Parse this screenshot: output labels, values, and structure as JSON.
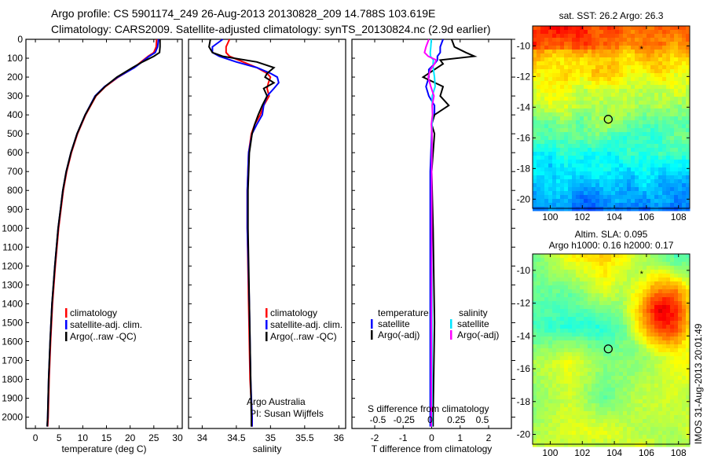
{
  "title": {
    "line1": "Argo profile: CS 5901174_249 26-Aug-2013 20130828_209 14.788S 103.619E",
    "line2": "Climatology: CARS2009. Satellite-adjusted climatology: synTS_20130824.nc (2.9d earlier)"
  },
  "colors": {
    "climatology": "#ff0000",
    "satellite": "#0000ff",
    "argo": "#000000",
    "sal_satellite": "#00e5ff",
    "sal_argo": "#ff00ff"
  },
  "chart_data": [
    {
      "type": "line",
      "id": "temperature",
      "xlabel": "temperature (deg C)",
      "ylabel": "",
      "xlim": [
        -2,
        31
      ],
      "ylim": [
        2060,
        0
      ],
      "xticks": [
        0,
        5,
        10,
        15,
        20,
        25,
        30
      ],
      "yticks": [
        0,
        100,
        200,
        300,
        400,
        500,
        600,
        700,
        800,
        900,
        1000,
        1100,
        1200,
        1300,
        1400,
        1500,
        1600,
        1700,
        1800,
        1900,
        2000
      ],
      "depth": [
        0,
        40,
        70,
        90,
        120,
        150,
        200,
        250,
        300,
        400,
        500,
        600,
        700,
        800,
        1000,
        1200,
        1400,
        1600,
        1800,
        2000,
        2050
      ],
      "series": [
        {
          "name": "climatology",
          "color": "#ff0000",
          "values": [
            25.6,
            25.5,
            25.0,
            23.8,
            22.3,
            20.8,
            17.5,
            14.8,
            12.8,
            10.6,
            8.9,
            7.6,
            6.6,
            5.9,
            4.9,
            4.2,
            3.6,
            3.2,
            2.9,
            2.7,
            2.6
          ]
        },
        {
          "name": "satellite-adj. clim.",
          "color": "#0000ff",
          "values": [
            26.0,
            25.8,
            25.3,
            24.0,
            22.5,
            20.9,
            17.4,
            14.6,
            12.6,
            10.5,
            8.8,
            7.5,
            6.5,
            5.8,
            4.8,
            4.1,
            3.5,
            3.1,
            2.8,
            2.6,
            2.5
          ]
        },
        {
          "name": "Argo(..raw -QC)",
          "color": "#000000",
          "values": [
            26.3,
            26.3,
            26.2,
            25.0,
            22.6,
            20.5,
            17.2,
            14.7,
            12.7,
            10.5,
            8.8,
            7.5,
            6.5,
            5.8,
            4.8,
            4.1,
            3.5,
            3.1,
            2.8,
            2.6,
            2.5
          ]
        }
      ],
      "legend": [
        "climatology",
        "satellite-adj. clim.",
        "Argo(..raw -QC)"
      ]
    },
    {
      "type": "line",
      "id": "salinity",
      "xlabel": "salinity",
      "ylabel": "",
      "xlim": [
        33.8,
        36.1
      ],
      "ylim": [
        2060,
        0
      ],
      "xticks": [
        34,
        34.5,
        35,
        35.5,
        36
      ],
      "depth": [
        0,
        40,
        70,
        90,
        120,
        150,
        180,
        200,
        230,
        260,
        300,
        350,
        400,
        450,
        500,
        600,
        800,
        1000,
        1400,
        1800,
        2000,
        2050
      ],
      "series": [
        {
          "name": "climatology",
          "color": "#ff0000",
          "values": [
            34.4,
            34.35,
            34.35,
            34.4,
            34.6,
            34.8,
            34.95,
            35.0,
            34.97,
            34.95,
            34.98,
            34.9,
            34.85,
            34.77,
            34.72,
            34.68,
            34.66,
            34.66,
            34.68,
            34.7,
            34.73,
            34.73
          ]
        },
        {
          "name": "satellite-adj. clim.",
          "color": "#0000ff",
          "values": [
            34.3,
            34.15,
            34.15,
            34.25,
            34.5,
            34.8,
            35.0,
            35.1,
            35.12,
            35.05,
            34.95,
            34.9,
            34.88,
            34.8,
            34.73,
            34.68,
            34.66,
            34.66,
            34.69,
            34.71,
            34.73,
            34.73
          ]
        },
        {
          "name": "Argo(..raw -QC)",
          "color": "#000000",
          "values": [
            34.12,
            34.1,
            34.15,
            34.3,
            34.8,
            35.05,
            34.95,
            34.92,
            35.05,
            34.9,
            34.95,
            34.88,
            34.82,
            34.77,
            34.73,
            34.69,
            34.67,
            34.67,
            34.69,
            34.71,
            34.72,
            34.72
          ]
        }
      ],
      "legend": [
        "climatology",
        "satellite-adj. clim.",
        "Argo(..raw -QC)"
      ],
      "annotation": [
        "Argo Australia",
        "PI: Susan Wijffels"
      ]
    },
    {
      "type": "line",
      "id": "difference",
      "xlabel": "T difference from climatology",
      "xlabel2": "S difference from climatology",
      "xlim": [
        -2.8,
        2.8
      ],
      "ylim": [
        2060,
        0
      ],
      "xticks": [
        -2,
        -1,
        0,
        1,
        2
      ],
      "xticks2": [
        "-0.5",
        "-0.25",
        "0",
        "0.25",
        "0.5"
      ],
      "depth": [
        0,
        40,
        70,
        90,
        110,
        130,
        160,
        200,
        250,
        300,
        350,
        400,
        450,
        500,
        700,
        1000,
        1500,
        2000,
        2050
      ],
      "series": [
        {
          "name": "temperature satellite",
          "color": "#0000ff",
          "values": [
            0.4,
            0.3,
            0.3,
            0.2,
            0.2,
            0.1,
            -0.1,
            -0.1,
            -0.2,
            -0.1,
            0.1,
            0.1,
            0,
            0,
            -0.05,
            -0.05,
            -0.05,
            -0.05,
            -0.05
          ]
        },
        {
          "name": "temperature Argo(-adj)",
          "color": "#000000",
          "values": [
            0.7,
            0.8,
            1.2,
            1.5,
            0.3,
            0.4,
            0.1,
            -0.3,
            0.4,
            0.3,
            0.6,
            0.1,
            0,
            0.1,
            0,
            0.05,
            0.1,
            0.05,
            0.05
          ]
        },
        {
          "name": "salinity satellite",
          "color": "#00e5ff",
          "values": [
            -0.01,
            -0.03,
            -0.05,
            -0.04,
            0.06,
            0.05,
            0.06,
            0.1,
            0.12,
            0.02,
            0.02,
            0.04,
            0.01,
            0.01,
            0,
            0,
            0.01,
            0.01,
            0.01
          ]
        },
        {
          "name": "salinity Argo(-adj)",
          "color": "#ff00ff",
          "values": [
            -0.1,
            -0.2,
            -0.25,
            -0.12,
            0.16,
            0.1,
            -0.04,
            -0.12,
            -0.03,
            0.08,
            0.02,
            0.03,
            -0.01,
            0.01,
            0,
            0,
            -0.01,
            -0.01,
            -0.01
          ]
        }
      ],
      "legend_headers": [
        "temperature",
        "salinity"
      ],
      "legend": [
        "satellite",
        "Argo(-adj)",
        "satellite",
        "Argo(-adj)"
      ]
    },
    {
      "type": "heatmap",
      "id": "sst-map",
      "title": "sat. SST: 26.2  Argo: 26.3",
      "xlim": [
        98.9,
        108.7
      ],
      "ylim": [
        -20.6,
        -8.7
      ],
      "xticks": [
        100,
        102,
        104,
        106,
        108
      ],
      "yticks": [
        -10,
        -12,
        -14,
        -16,
        -18,
        -20
      ],
      "marker": {
        "lon": 103.619,
        "lat": -14.788
      }
    },
    {
      "type": "heatmap",
      "id": "sla-map",
      "title": "Altim. SLA: 0.095",
      "subtitle": "Argo h1000: 0.16 h2000: 0.17",
      "xlim": [
        98.9,
        108.7
      ],
      "ylim": [
        -20.6,
        -9.0
      ],
      "xticks": [
        100,
        102,
        104,
        106,
        108
      ],
      "yticks": [
        -10,
        -12,
        -14,
        -16,
        -18,
        -20
      ],
      "marker": {
        "lon": 103.619,
        "lat": -14.788
      }
    }
  ],
  "footer": {
    "stamp": "IMOS 31-Aug-2013 20:01:49"
  }
}
